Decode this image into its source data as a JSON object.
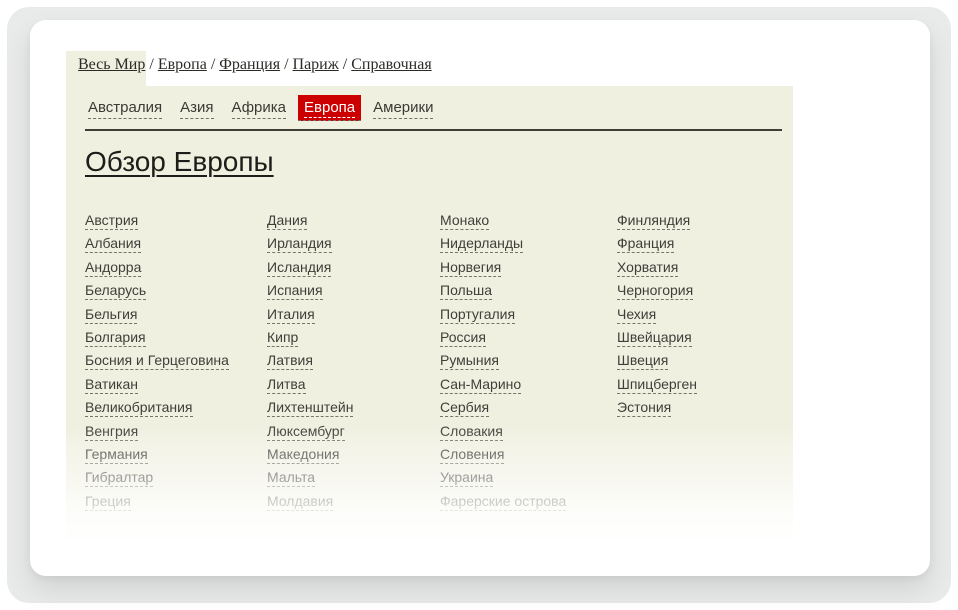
{
  "colors": {
    "page_bg": "#e9eaea",
    "panel_beige": "#f0f0e1",
    "accent_red": "#cc0000",
    "link_text": "#3f3f3a"
  },
  "breadcrumb": {
    "separator": " / ",
    "items": [
      "Весь Мир",
      "Европа",
      "Франция",
      "Париж",
      "Справочная"
    ]
  },
  "tabs": [
    {
      "label": "Австралия",
      "active": false
    },
    {
      "label": "Азия",
      "active": false
    },
    {
      "label": "Африка",
      "active": false
    },
    {
      "label": "Европа",
      "active": true
    },
    {
      "label": "Америки",
      "active": false
    }
  ],
  "heading": "Обзор Европы",
  "countries": {
    "columns": [
      [
        "Австрия",
        "Албания",
        "Андорра",
        "Беларусь",
        "Бельгия",
        "Болгария",
        "Босния и Герцеговина",
        "Ватикан",
        "Великобритания",
        "Венгрия",
        "Германия",
        "Гибралтар",
        "Греция"
      ],
      [
        "Дания",
        "Ирландия",
        "Исландия",
        "Испания",
        "Италия",
        "Кипр",
        "Латвия",
        "Литва",
        "Лихтенштейн",
        "Люксембург",
        "Македония",
        "Мальта",
        "Молдавия"
      ],
      [
        "Монако",
        "Нидерланды",
        "Норвегия",
        "Польша",
        "Португалия",
        "Россия",
        "Румыния",
        "Сан-Марино",
        "Сербия",
        "Словакия",
        "Словения",
        "Украина",
        "Фарерские острова"
      ],
      [
        "Финляндия",
        "Франция",
        "Хорватия",
        "Черногория",
        "Чехия",
        "Швейцария",
        "Швеция",
        "Шпицберген",
        "Эстония"
      ]
    ]
  }
}
